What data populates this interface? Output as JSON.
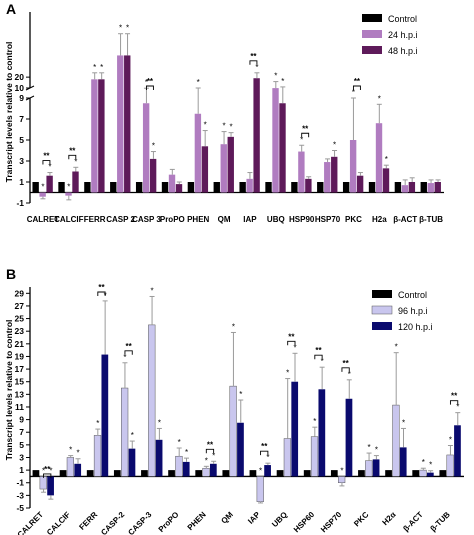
{
  "colors": {
    "control": "#000000",
    "a24": "#b07cc0",
    "a48": "#5e1a5a",
    "b96": "#c9c6ee",
    "b120": "#0a0a6e",
    "error": "#9a9a9a"
  },
  "chart_data": [
    {
      "type": "bar",
      "panel_label": "A",
      "ylabel": "Transcript levels relative to control",
      "categories": [
        "CALRET",
        "CALCIF",
        "FERR",
        "CASP 2",
        "CASP 3",
        "ProPO",
        "PHEN",
        "QM",
        "IAP",
        "UBQ",
        "HSP90",
        "HSP70",
        "PKC",
        "H2a",
        "β-ACT",
        "β-TUB"
      ],
      "broken_axis": true,
      "segments": [
        {
          "ylim": [
            -1,
            9
          ],
          "ticks": [
            -1,
            1,
            3,
            5,
            7,
            9
          ],
          "tick_labels": [
            "-1",
            "1",
            "3",
            "5",
            "7",
            "9"
          ]
        },
        {
          "ylim": [
            10,
            80
          ],
          "ticks": [
            10,
            20
          ],
          "tick_labels": [
            "10",
            "20"
          ]
        }
      ],
      "legend": "top-right",
      "series": [
        {
          "name": "Control",
          "values": [
            1,
            1,
            1,
            1,
            1,
            1,
            1,
            1,
            1,
            1,
            1,
            1,
            1,
            1,
            1,
            1
          ],
          "errors": [
            0,
            0,
            0,
            0,
            0,
            0,
            0,
            0,
            0,
            0,
            0,
            0,
            0,
            0,
            0,
            0
          ]
        },
        {
          "name": "24 h.p.i",
          "values": [
            -0.4,
            -0.3,
            18,
            40,
            8.5,
            1.7,
            7.5,
            4.6,
            1.3,
            9.9,
            3.9,
            2.9,
            5.0,
            6.6,
            0.7,
            0.9
          ],
          "errors": [
            0.2,
            0.4,
            6,
            20,
            1.3,
            0.5,
            2.5,
            1.2,
            0.6,
            6,
            0.6,
            0.3,
            4,
            1.8,
            0.5,
            0.3
          ],
          "stars": [
            1,
            1,
            1,
            1,
            1,
            0,
            1,
            1,
            0,
            1,
            1,
            0,
            1,
            1,
            0,
            0
          ]
        },
        {
          "name": "48 h.p.i",
          "values": [
            1.6,
            2.0,
            18,
            40,
            3.2,
            0.8,
            4.4,
            5.3,
            19,
            8.5,
            1.3,
            3.4,
            1.6,
            2.3,
            1.0,
            1.0
          ],
          "errors": [
            0.3,
            0.4,
            6,
            20,
            0.7,
            0.2,
            1.5,
            0.4,
            5,
            2.5,
            0.2,
            0.6,
            0.3,
            0.3,
            0.4,
            0.2
          ],
          "stars": [
            1,
            1,
            1,
            1,
            1,
            0,
            1,
            1,
            1,
            1,
            0,
            1,
            0,
            1,
            0,
            0
          ]
        }
      ],
      "brackets": [
        0,
        1,
        4,
        8,
        10,
        12
      ]
    },
    {
      "type": "bar",
      "panel_label": "B",
      "ylabel": "Transcript levels relative to control",
      "categories": [
        "CALRET",
        "CALCIF",
        "FERR",
        "CASP-2",
        "CASP-3",
        "ProPO",
        "PHEN",
        "QM",
        "IAP",
        "UBQ",
        "HSP60",
        "HSP70",
        "PKC",
        "H2α",
        "β-ACT",
        "β-TUB"
      ],
      "ylim": [
        -5,
        30
      ],
      "ticks": [
        -5,
        -3,
        -1,
        1,
        3,
        5,
        7,
        9,
        11,
        13,
        15,
        17,
        19,
        21,
        23,
        25,
        27,
        29
      ],
      "legend": "top-right",
      "series": [
        {
          "name": "Control",
          "values": [
            1,
            1,
            1,
            1,
            1,
            1,
            1,
            1,
            1,
            1,
            1,
            1,
            1,
            1,
            1,
            1
          ],
          "errors": [
            0,
            0,
            0,
            0,
            0,
            0,
            0,
            0,
            0,
            0,
            0,
            0,
            0,
            0,
            0,
            0
          ]
        },
        {
          "name": "96 h.p.i",
          "values": [
            -2,
            3,
            6.5,
            14,
            24,
            3.2,
            1.3,
            14.3,
            -4,
            6,
            6.3,
            -1,
            2.5,
            11.3,
            1,
            3.4
          ],
          "errors": [
            0.5,
            0.3,
            1,
            4,
            4.5,
            1.3,
            0.3,
            8.5,
            0.2,
            9.5,
            1.5,
            0.5,
            1.2,
            8.3,
            0.3,
            1.5
          ],
          "stars": [
            1,
            1,
            1,
            1,
            1,
            1,
            1,
            1,
            1,
            1,
            1,
            1,
            1,
            1,
            1,
            1
          ]
        },
        {
          "name": "120 h.p.i",
          "values": [
            -3,
            2,
            19.3,
            4.4,
            5.8,
            2.3,
            2,
            8.5,
            1.8,
            15,
            13.8,
            12.3,
            2.7,
            4.6,
            0.6,
            8.1
          ],
          "errors": [
            0.6,
            0.8,
            8.5,
            1.2,
            1.8,
            0.6,
            0.4,
            3.6,
            0.3,
            4.5,
            3.5,
            3,
            0.6,
            3,
            0.3,
            2
          ],
          "stars": [
            1,
            1,
            1,
            1,
            1,
            1,
            1,
            1,
            1,
            1,
            1,
            1,
            1,
            1,
            1,
            1
          ]
        }
      ],
      "brackets": [
        0,
        2,
        3,
        6,
        8,
        9,
        10,
        11,
        15
      ]
    }
  ],
  "sig_mark": "**",
  "star_mark": "*"
}
